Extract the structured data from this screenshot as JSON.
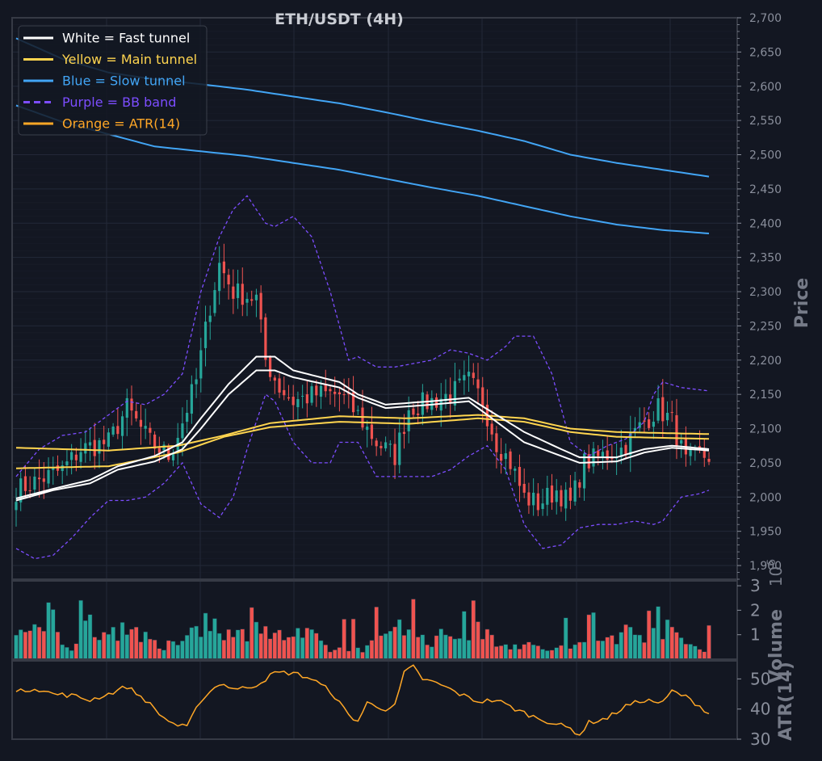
{
  "colors": {
    "background": "#131722",
    "panel_border": "#363a45",
    "grid": "#232838",
    "tick_text": "#8a8f9c",
    "axis_label": "#767b88",
    "title": "#c9ccd3",
    "up": "#26a69a",
    "down": "#ef5350",
    "fast": "#ffffff",
    "main": "#ffd54f",
    "slow": "#42a5f5",
    "bb": "#7c4dff",
    "atr": "#ffa726"
  },
  "chart_data": {
    "type": "candlestick",
    "title": "ETH/USDT (4H)",
    "legend": {
      "placement": "top-left",
      "entries": [
        {
          "label": "White = Fast tunnel",
          "color": "#ffffff",
          "dashed": false
        },
        {
          "label": "Yellow = Main tunnel",
          "color": "#ffd54f",
          "dashed": false
        },
        {
          "label": "Blue = Slow tunnel",
          "color": "#42a5f5",
          "dashed": false
        },
        {
          "label": "Purple = BB band",
          "color": "#7c4dff",
          "dashed": true
        },
        {
          "label": "Orange = ATR(14)",
          "color": "#ffa726",
          "dashed": false
        }
      ]
    },
    "price_axis": {
      "label": "Price",
      "range": [
        1880,
        2700
      ],
      "ticks": [
        "1,900",
        "1,950",
        "2,000",
        "2,050",
        "2,100",
        "2,150",
        "2,200",
        "2,250",
        "2,300",
        "2,350",
        "2,400",
        "2,450",
        "2,500",
        "2,550",
        "2,600",
        "2,650",
        "2,700"
      ]
    },
    "volume_axis": {
      "label": "Volume",
      "exponent": "1e6",
      "range": [
        0,
        3.2
      ],
      "ticks": [
        "1",
        "2",
        "3"
      ]
    },
    "atr_axis": {
      "label": "ATR(14)",
      "range": [
        30,
        56
      ],
      "ticks": [
        "30",
        "40",
        "50"
      ]
    },
    "grid": true,
    "anchors": {
      "close": [
        [
          0,
          2010
        ],
        [
          10,
          2040
        ],
        [
          14,
          2070
        ],
        [
          20,
          2080
        ],
        [
          24,
          2130
        ],
        [
          26,
          2110
        ],
        [
          29,
          2080
        ],
        [
          33,
          2060
        ],
        [
          36,
          2110
        ],
        [
          39,
          2170
        ],
        [
          42,
          2280
        ],
        [
          44,
          2340
        ],
        [
          47,
          2300
        ],
        [
          52,
          2290
        ],
        [
          54,
          2200
        ],
        [
          57,
          2160
        ],
        [
          60,
          2140
        ],
        [
          65,
          2150
        ],
        [
          70,
          2150
        ],
        [
          74,
          2120
        ],
        [
          78,
          2080
        ],
        [
          82,
          2060
        ],
        [
          85,
          2130
        ],
        [
          90,
          2140
        ],
        [
          94,
          2150
        ],
        [
          98,
          2170
        ],
        [
          101,
          2140
        ],
        [
          104,
          2080
        ],
        [
          107,
          2050
        ],
        [
          110,
          2000
        ],
        [
          113,
          1990
        ],
        [
          117,
          2010
        ],
        [
          120,
          1990
        ],
        [
          123,
          2050
        ],
        [
          127,
          2060
        ],
        [
          131,
          2070
        ],
        [
          136,
          2110
        ],
        [
          139,
          2130
        ],
        [
          142,
          2110
        ],
        [
          145,
          2050
        ],
        [
          148,
          2060
        ],
        [
          150,
          2060
        ]
      ],
      "volume": [
        [
          0,
          1.1
        ],
        [
          8,
          1.0
        ],
        [
          12,
          0.5
        ],
        [
          16,
          1.5
        ],
        [
          20,
          1.0
        ],
        [
          24,
          1.5
        ],
        [
          28,
          0.8
        ],
        [
          32,
          0.4
        ],
        [
          36,
          1.0
        ],
        [
          40,
          1.5
        ],
        [
          44,
          1.5
        ],
        [
          47,
          0.8
        ],
        [
          52,
          1.5
        ],
        [
          56,
          0.9
        ],
        [
          60,
          1.0
        ],
        [
          64,
          0.9
        ],
        [
          68,
          0.4
        ],
        [
          72,
          0.4
        ],
        [
          76,
          0.5
        ],
        [
          80,
          0.9
        ],
        [
          83,
          1.9
        ],
        [
          86,
          1.0
        ],
        [
          90,
          0.8
        ],
        [
          94,
          1.0
        ],
        [
          98,
          1.0
        ],
        [
          101,
          1.2
        ],
        [
          104,
          0.8
        ],
        [
          108,
          0.6
        ],
        [
          112,
          0.5
        ],
        [
          116,
          0.4
        ],
        [
          120,
          0.5
        ],
        [
          124,
          0.6
        ],
        [
          128,
          0.9
        ],
        [
          132,
          1.1
        ],
        [
          136,
          1.1
        ],
        [
          140,
          1.3
        ],
        [
          144,
          0.8
        ],
        [
          148,
          0.4
        ],
        [
          150,
          0.3
        ]
      ],
      "atr": [
        [
          0,
          45.5
        ],
        [
          4,
          47
        ],
        [
          8,
          45
        ],
        [
          12,
          44.5
        ],
        [
          16,
          43
        ],
        [
          20,
          45
        ],
        [
          24,
          47.5
        ],
        [
          28,
          43
        ],
        [
          32,
          37
        ],
        [
          35,
          34.5
        ],
        [
          37,
          34
        ],
        [
          40,
          43
        ],
        [
          44,
          48.5
        ],
        [
          48,
          46.5
        ],
        [
          52,
          48
        ],
        [
          56,
          52
        ],
        [
          60,
          52
        ],
        [
          64,
          50
        ],
        [
          68,
          46
        ],
        [
          72,
          38
        ],
        [
          74,
          36
        ],
        [
          76,
          42
        ],
        [
          80,
          40
        ],
        [
          82,
          41
        ],
        [
          84,
          52
        ],
        [
          86,
          54
        ],
        [
          88,
          50
        ],
        [
          92,
          48
        ],
        [
          96,
          45
        ],
        [
          100,
          42.5
        ],
        [
          104,
          43
        ],
        [
          108,
          40
        ],
        [
          112,
          37.5
        ],
        [
          116,
          35.5
        ],
        [
          120,
          33.5
        ],
        [
          122,
          31.5
        ],
        [
          124,
          35.5
        ],
        [
          128,
          37
        ],
        [
          132,
          41
        ],
        [
          136,
          43
        ],
        [
          140,
          42
        ],
        [
          142,
          46
        ],
        [
          145,
          44
        ],
        [
          148,
          41
        ],
        [
          150,
          38.5
        ]
      ],
      "main_upper": [
        [
          0,
          2072
        ],
        [
          20,
          2068
        ],
        [
          35,
          2075
        ],
        [
          45,
          2090
        ],
        [
          55,
          2108
        ],
        [
          70,
          2118
        ],
        [
          85,
          2115
        ],
        [
          100,
          2120
        ],
        [
          110,
          2115
        ],
        [
          120,
          2100
        ],
        [
          130,
          2095
        ],
        [
          150,
          2092
        ]
      ],
      "main_lower": [
        [
          0,
          2042
        ],
        [
          20,
          2045
        ],
        [
          35,
          2065
        ],
        [
          45,
          2088
        ],
        [
          55,
          2102
        ],
        [
          70,
          2110
        ],
        [
          85,
          2107
        ],
        [
          100,
          2115
        ],
        [
          110,
          2110
        ],
        [
          120,
          2095
        ],
        [
          130,
          2088
        ],
        [
          150,
          2085
        ]
      ],
      "fast_upper": [
        [
          0,
          1998
        ],
        [
          8,
          2012
        ],
        [
          16,
          2025
        ],
        [
          22,
          2045
        ],
        [
          30,
          2060
        ],
        [
          36,
          2080
        ],
        [
          40,
          2115
        ],
        [
          46,
          2165
        ],
        [
          52,
          2205
        ],
        [
          56,
          2205
        ],
        [
          60,
          2185
        ],
        [
          70,
          2168
        ],
        [
          74,
          2150
        ],
        [
          80,
          2135
        ],
        [
          90,
          2140
        ],
        [
          98,
          2145
        ],
        [
          104,
          2120
        ],
        [
          110,
          2095
        ],
        [
          118,
          2070
        ],
        [
          122,
          2058
        ],
        [
          130,
          2058
        ],
        [
          136,
          2070
        ],
        [
          142,
          2075
        ],
        [
          150,
          2070
        ]
      ],
      "fast_lower": [
        [
          0,
          1995
        ],
        [
          8,
          2010
        ],
        [
          16,
          2020
        ],
        [
          22,
          2040
        ],
        [
          30,
          2052
        ],
        [
          36,
          2070
        ],
        [
          40,
          2100
        ],
        [
          46,
          2150
        ],
        [
          52,
          2185
        ],
        [
          56,
          2185
        ],
        [
          60,
          2175
        ],
        [
          70,
          2160
        ],
        [
          74,
          2145
        ],
        [
          80,
          2130
        ],
        [
          90,
          2135
        ],
        [
          98,
          2140
        ],
        [
          104,
          2110
        ],
        [
          110,
          2080
        ],
        [
          118,
          2060
        ],
        [
          122,
          2050
        ],
        [
          130,
          2052
        ],
        [
          136,
          2065
        ],
        [
          142,
          2072
        ],
        [
          150,
          2068
        ]
      ],
      "slow_upper": [
        [
          0,
          2670
        ],
        [
          10,
          2640
        ],
        [
          20,
          2620
        ],
        [
          30,
          2610
        ],
        [
          40,
          2603
        ],
        [
          50,
          2595
        ],
        [
          60,
          2585
        ],
        [
          70,
          2575
        ],
        [
          80,
          2562
        ],
        [
          90,
          2548
        ],
        [
          100,
          2535
        ],
        [
          110,
          2520
        ],
        [
          120,
          2500
        ],
        [
          130,
          2488
        ],
        [
          140,
          2478
        ],
        [
          150,
          2468
        ]
      ],
      "slow_lower": [
        [
          0,
          2572
        ],
        [
          10,
          2548
        ],
        [
          20,
          2530
        ],
        [
          30,
          2512
        ],
        [
          40,
          2505
        ],
        [
          50,
          2498
        ],
        [
          60,
          2488
        ],
        [
          70,
          2478
        ],
        [
          80,
          2465
        ],
        [
          90,
          2452
        ],
        [
          100,
          2440
        ],
        [
          110,
          2425
        ],
        [
          120,
          2410
        ],
        [
          130,
          2398
        ],
        [
          140,
          2390
        ],
        [
          150,
          2385
        ]
      ],
      "bb_upper": [
        [
          0,
          2030
        ],
        [
          5,
          2070
        ],
        [
          10,
          2090
        ],
        [
          15,
          2095
        ],
        [
          20,
          2120
        ],
        [
          24,
          2140
        ],
        [
          28,
          2135
        ],
        [
          32,
          2150
        ],
        [
          36,
          2180
        ],
        [
          40,
          2300
        ],
        [
          44,
          2380
        ],
        [
          47,
          2420
        ],
        [
          50,
          2440
        ],
        [
          54,
          2400
        ],
        [
          56,
          2395
        ],
        [
          60,
          2410
        ],
        [
          64,
          2380
        ],
        [
          68,
          2300
        ],
        [
          72,
          2200
        ],
        [
          74,
          2205
        ],
        [
          78,
          2190
        ],
        [
          82,
          2190
        ],
        [
          86,
          2195
        ],
        [
          90,
          2200
        ],
        [
          94,
          2215
        ],
        [
          98,
          2210
        ],
        [
          102,
          2200
        ],
        [
          106,
          2220
        ],
        [
          108,
          2235
        ],
        [
          112,
          2235
        ],
        [
          116,
          2180
        ],
        [
          120,
          2080
        ],
        [
          124,
          2060
        ],
        [
          128,
          2075
        ],
        [
          132,
          2085
        ],
        [
          136,
          2110
        ],
        [
          138,
          2150
        ],
        [
          140,
          2168
        ],
        [
          144,
          2160
        ],
        [
          150,
          2155
        ]
      ],
      "bb_lower": [
        [
          0,
          1925
        ],
        [
          4,
          1910
        ],
        [
          8,
          1915
        ],
        [
          12,
          1940
        ],
        [
          16,
          1970
        ],
        [
          20,
          1995
        ],
        [
          24,
          1995
        ],
        [
          28,
          2000
        ],
        [
          32,
          2020
        ],
        [
          36,
          2050
        ],
        [
          40,
          1990
        ],
        [
          44,
          1970
        ],
        [
          47,
          2000
        ],
        [
          50,
          2070
        ],
        [
          54,
          2150
        ],
        [
          56,
          2140
        ],
        [
          60,
          2080
        ],
        [
          64,
          2050
        ],
        [
          68,
          2050
        ],
        [
          70,
          2080
        ],
        [
          74,
          2080
        ],
        [
          78,
          2030
        ],
        [
          82,
          2030
        ],
        [
          86,
          2030
        ],
        [
          90,
          2030
        ],
        [
          94,
          2040
        ],
        [
          98,
          2060
        ],
        [
          102,
          2075
        ],
        [
          106,
          2040
        ],
        [
          110,
          1960
        ],
        [
          114,
          1925
        ],
        [
          118,
          1930
        ],
        [
          122,
          1955
        ],
        [
          126,
          1960
        ],
        [
          130,
          1960
        ],
        [
          134,
          1965
        ],
        [
          138,
          1960
        ],
        [
          140,
          1965
        ],
        [
          144,
          2000
        ],
        [
          148,
          2005
        ],
        [
          150,
          2010
        ]
      ]
    }
  }
}
